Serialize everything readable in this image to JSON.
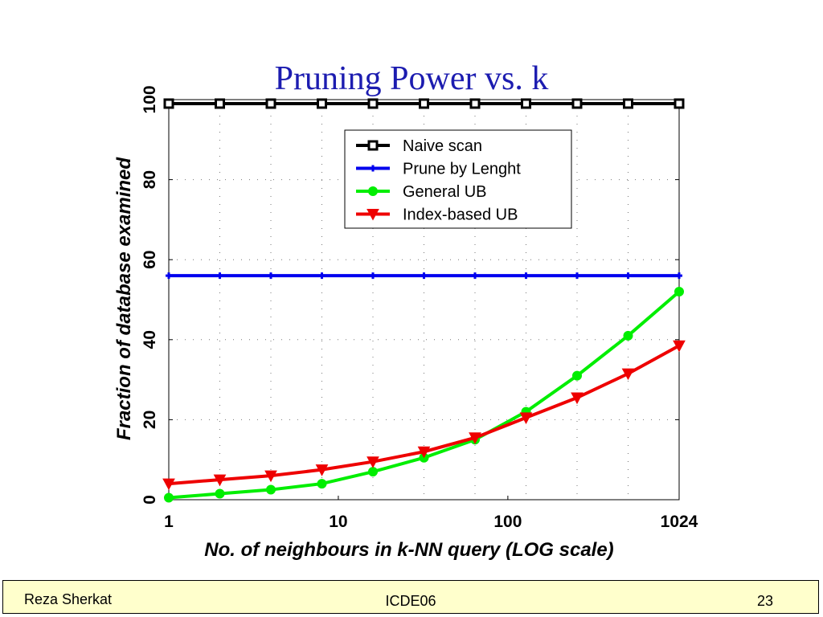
{
  "slide": {
    "title": "Pruning Power vs. k"
  },
  "footer": {
    "author": "Reza Sherkat",
    "venue": "ICDE06",
    "page_number": "23"
  },
  "colors": {
    "naive": "#000000",
    "prune": "#0000ee",
    "general": "#00ee00",
    "index": "#ee0000",
    "title": "#1c1cb0",
    "footer_bg": "#ffffcc"
  },
  "chart_data": {
    "type": "line",
    "title": "Pruning Power vs. k",
    "xlabel": "No. of neighbours in k-NN query (LOG scale)",
    "ylabel": "Fraction of database examined",
    "xscale": "log2",
    "x": [
      1,
      2,
      4,
      8,
      16,
      32,
      64,
      128,
      256,
      512,
      1024
    ],
    "xticks": [
      "1",
      "10",
      "100",
      "1024"
    ],
    "xtick_values": [
      1,
      10,
      100,
      1024
    ],
    "yticks": [
      "0",
      "20",
      "40",
      "60",
      "80",
      "100"
    ],
    "ylim": [
      0,
      100
    ],
    "grid": "dotted",
    "legend_position": "top-right",
    "series": [
      {
        "name": "Naive scan",
        "color": "#000000",
        "marker": "square",
        "values": [
          99,
          99,
          99,
          99,
          99,
          99,
          99,
          99,
          99,
          99,
          99
        ]
      },
      {
        "name": "Prune by Lenght",
        "color": "#0000ee",
        "marker": "plus",
        "values": [
          56,
          56,
          56,
          56,
          56,
          56,
          56,
          56,
          56,
          56,
          56
        ]
      },
      {
        "name": "General UB",
        "color": "#00ee00",
        "marker": "circle",
        "values": [
          0.5,
          1.5,
          2.5,
          4,
          7,
          10.5,
          15,
          22,
          31,
          41,
          52
        ]
      },
      {
        "name": "Index-based UB",
        "color": "#ee0000",
        "marker": "triangle",
        "values": [
          4,
          5,
          6,
          7.5,
          9.5,
          12,
          15.5,
          20.5,
          25.5,
          31.5,
          38.5
        ]
      }
    ]
  }
}
